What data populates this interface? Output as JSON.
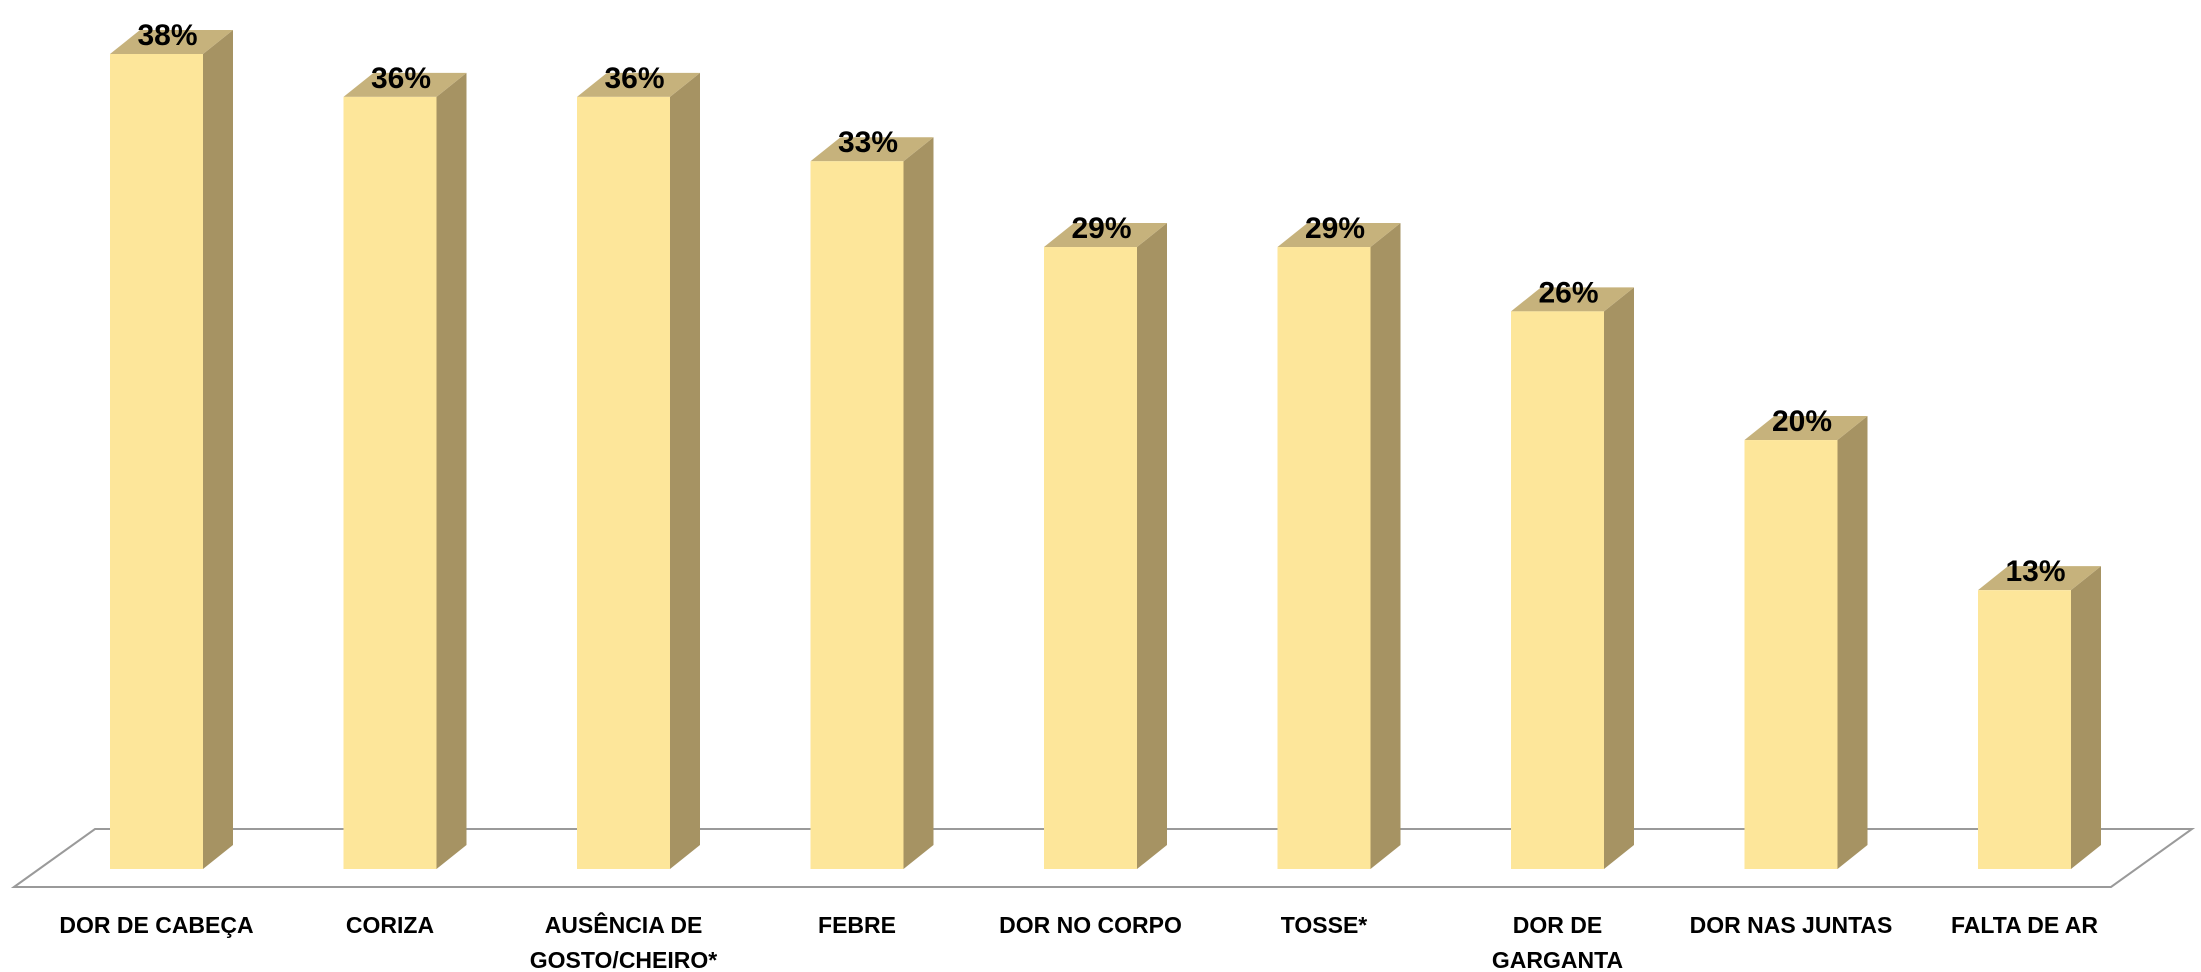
{
  "chart_data": {
    "type": "bar",
    "categories": [
      [
        "DOR DE CABEÇA"
      ],
      [
        "CORIZA"
      ],
      [
        "AUSÊNCIA DE",
        "GOSTO/CHEIRO*"
      ],
      [
        "FEBRE"
      ],
      [
        "DOR NO CORPO"
      ],
      [
        "TOSSE*"
      ],
      [
        "DOR DE",
        "GARGANTA"
      ],
      [
        "DOR NAS JUNTAS"
      ],
      [
        "FALTA DE AR"
      ]
    ],
    "values": [
      38,
      36,
      36,
      33,
      29,
      29,
      26,
      20,
      13
    ],
    "value_labels": [
      "38%",
      "36%",
      "36%",
      "33%",
      "29%",
      "29%",
      "26%",
      "20%",
      "13%"
    ],
    "ylim": [
      0,
      38
    ],
    "grid": false,
    "legend": "none",
    "colors": {
      "bar_front": "#FDE69A",
      "bar_side": "#A69363",
      "bar_top": "#C6B27C",
      "floor_stroke": "#9A9A9A"
    }
  }
}
